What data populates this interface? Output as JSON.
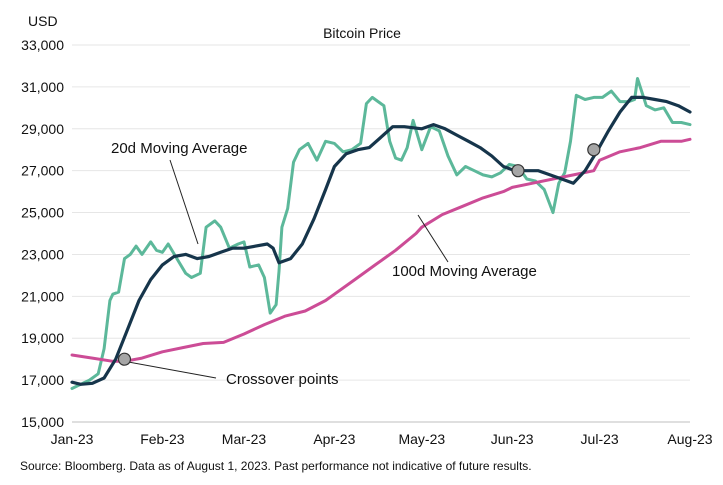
{
  "chart_data": {
    "type": "line",
    "title": "Bitcoin Price",
    "ylabel": "USD",
    "ylim": [
      15000,
      33000
    ],
    "yticks": [
      15000,
      17000,
      19000,
      21000,
      23000,
      25000,
      27000,
      29000,
      31000,
      33000
    ],
    "ytick_labels": [
      "15,000",
      "17,000",
      "19,000",
      "21,000",
      "23,000",
      "25,000",
      "27,000",
      "29,000",
      "31,000",
      "33,000"
    ],
    "xlim": [
      "2023-01-01",
      "2023-08-01"
    ],
    "xticks": [
      "2023-01-01",
      "2023-02-01",
      "2023-03-01",
      "2023-04-01",
      "2023-05-01",
      "2023-06-01",
      "2023-07-01",
      "2023-08-01"
    ],
    "xtick_labels": [
      "Jan-23",
      "Feb-23",
      "Mar-23",
      "Apr-23",
      "May-23",
      "Jun-23",
      "Jul-23",
      "Aug-23"
    ],
    "grid": "horizontal",
    "colors": {
      "price": "#5cb89a",
      "ma20": "#16354b",
      "ma100": "#cc4c96",
      "marker_fill": "#a6a6a6",
      "marker_stroke": "#333333"
    },
    "series": [
      {
        "name": "Bitcoin Price",
        "x": [
          "2023-01-01",
          "2023-01-04",
          "2023-01-07",
          "2023-01-10",
          "2023-01-12",
          "2023-01-14",
          "2023-01-15",
          "2023-01-17",
          "2023-01-19",
          "2023-01-21",
          "2023-01-23",
          "2023-01-25",
          "2023-01-28",
          "2023-01-30",
          "2023-02-01",
          "2023-02-03",
          "2023-02-06",
          "2023-02-09",
          "2023-02-11",
          "2023-02-14",
          "2023-02-16",
          "2023-02-19",
          "2023-02-21",
          "2023-02-24",
          "2023-02-27",
          "2023-03-01",
          "2023-03-03",
          "2023-03-06",
          "2023-03-08",
          "2023-03-10",
          "2023-03-12",
          "2023-03-13",
          "2023-03-14",
          "2023-03-16",
          "2023-03-18",
          "2023-03-20",
          "2023-03-23",
          "2023-03-26",
          "2023-03-29",
          "2023-04-01",
          "2023-04-04",
          "2023-04-07",
          "2023-04-10",
          "2023-04-12",
          "2023-04-14",
          "2023-04-16",
          "2023-04-18",
          "2023-04-20",
          "2023-04-22",
          "2023-04-24",
          "2023-04-26",
          "2023-04-28",
          "2023-05-01",
          "2023-05-04",
          "2023-05-07",
          "2023-05-10",
          "2023-05-13",
          "2023-05-16",
          "2023-05-19",
          "2023-05-22",
          "2023-05-25",
          "2023-05-28",
          "2023-05-31",
          "2023-06-03",
          "2023-06-06",
          "2023-06-09",
          "2023-06-12",
          "2023-06-15",
          "2023-06-17",
          "2023-06-19",
          "2023-06-21",
          "2023-06-23",
          "2023-06-26",
          "2023-06-29",
          "2023-07-02",
          "2023-07-05",
          "2023-07-08",
          "2023-07-11",
          "2023-07-13",
          "2023-07-14",
          "2023-07-17",
          "2023-07-20",
          "2023-07-23",
          "2023-07-26",
          "2023-07-29",
          "2023-08-01"
        ],
        "values": [
          16600,
          16800,
          17000,
          17300,
          18500,
          20800,
          21100,
          21200,
          22800,
          23000,
          23400,
          23000,
          23600,
          23200,
          23100,
          23500,
          22800,
          22100,
          21900,
          22100,
          24300,
          24600,
          24300,
          23300,
          23500,
          23600,
          22400,
          22500,
          21900,
          20200,
          20600,
          22200,
          24300,
          25200,
          27400,
          28000,
          28300,
          27500,
          28400,
          28300,
          27900,
          28000,
          28300,
          30200,
          30500,
          30300,
          30100,
          28400,
          27600,
          27500,
          28100,
          29400,
          28000,
          29100,
          28900,
          27700,
          26800,
          27200,
          27000,
          26800,
          26700,
          26900,
          27300,
          27200,
          26600,
          26500,
          26100,
          25000,
          26400,
          26900,
          28400,
          30600,
          30400,
          30500,
          30500,
          30800,
          30300,
          30300,
          30400,
          31400,
          30100,
          29900,
          30000,
          29300,
          29300,
          29200
        ]
      },
      {
        "name": "20d Moving Average",
        "x": [
          "2023-01-01",
          "2023-01-04",
          "2023-01-08",
          "2023-01-12",
          "2023-01-16",
          "2023-01-20",
          "2023-01-24",
          "2023-01-28",
          "2023-02-01",
          "2023-02-05",
          "2023-02-09",
          "2023-02-13",
          "2023-02-17",
          "2023-02-21",
          "2023-02-25",
          "2023-03-01",
          "2023-03-05",
          "2023-03-09",
          "2023-03-11",
          "2023-03-13",
          "2023-03-17",
          "2023-03-21",
          "2023-03-25",
          "2023-03-29",
          "2023-04-01",
          "2023-04-05",
          "2023-04-09",
          "2023-04-13",
          "2023-04-17",
          "2023-04-21",
          "2023-04-25",
          "2023-05-01",
          "2023-05-05",
          "2023-05-09",
          "2023-05-13",
          "2023-05-17",
          "2023-05-21",
          "2023-05-25",
          "2023-05-29",
          "2023-06-02",
          "2023-06-06",
          "2023-06-10",
          "2023-06-14",
          "2023-06-18",
          "2023-06-22",
          "2023-06-26",
          "2023-06-30",
          "2023-07-04",
          "2023-07-08",
          "2023-07-12",
          "2023-07-16",
          "2023-07-20",
          "2023-07-24",
          "2023-07-28",
          "2023-08-01"
        ],
        "values": [
          16900,
          16800,
          16850,
          17100,
          18000,
          19400,
          20800,
          21800,
          22500,
          22900,
          23000,
          22800,
          22900,
          23100,
          23300,
          23300,
          23400,
          23500,
          23300,
          22600,
          22800,
          23500,
          24700,
          26100,
          27200,
          27800,
          28000,
          28100,
          28600,
          29100,
          29100,
          29000,
          29200,
          29000,
          28700,
          28400,
          28100,
          27700,
          27200,
          27000,
          27000,
          27000,
          26800,
          26600,
          26400,
          27000,
          27900,
          28900,
          29800,
          30500,
          30500,
          30400,
          30300,
          30100,
          29800
        ]
      },
      {
        "name": "100d Moving Average",
        "x": [
          "2023-01-01",
          "2023-01-08",
          "2023-01-15",
          "2023-01-19",
          "2023-01-25",
          "2023-02-01",
          "2023-02-08",
          "2023-02-15",
          "2023-02-22",
          "2023-03-01",
          "2023-03-08",
          "2023-03-15",
          "2023-03-22",
          "2023-03-29",
          "2023-04-01",
          "2023-04-08",
          "2023-04-15",
          "2023-04-22",
          "2023-04-29",
          "2023-05-01",
          "2023-05-08",
          "2023-05-15",
          "2023-05-22",
          "2023-05-29",
          "2023-06-01",
          "2023-06-08",
          "2023-06-15",
          "2023-06-22",
          "2023-06-29",
          "2023-07-01",
          "2023-07-08",
          "2023-07-15",
          "2023-07-22",
          "2023-07-29",
          "2023-08-01"
        ],
        "values": [
          18200,
          18050,
          17900,
          17900,
          18050,
          18350,
          18550,
          18750,
          18800,
          19200,
          19650,
          20050,
          20300,
          20800,
          21100,
          21800,
          22500,
          23200,
          24000,
          24300,
          24900,
          25300,
          25700,
          26000,
          26200,
          26400,
          26600,
          26800,
          27000,
          27500,
          27900,
          28100,
          28400,
          28400,
          28500
        ]
      }
    ],
    "crossover_points": [
      {
        "x": "2023-01-19",
        "y": 18000
      },
      {
        "x": "2023-06-03",
        "y": 27000
      },
      {
        "x": "2023-06-29",
        "y": 28000
      }
    ],
    "annotations": [
      {
        "text": "20d Moving Average"
      },
      {
        "text": "100d Moving Average"
      },
      {
        "text": "Crossover points"
      }
    ],
    "source": "Source: Bloomberg. Data as of August 1, 2023. Past performance not indicative of future results."
  }
}
